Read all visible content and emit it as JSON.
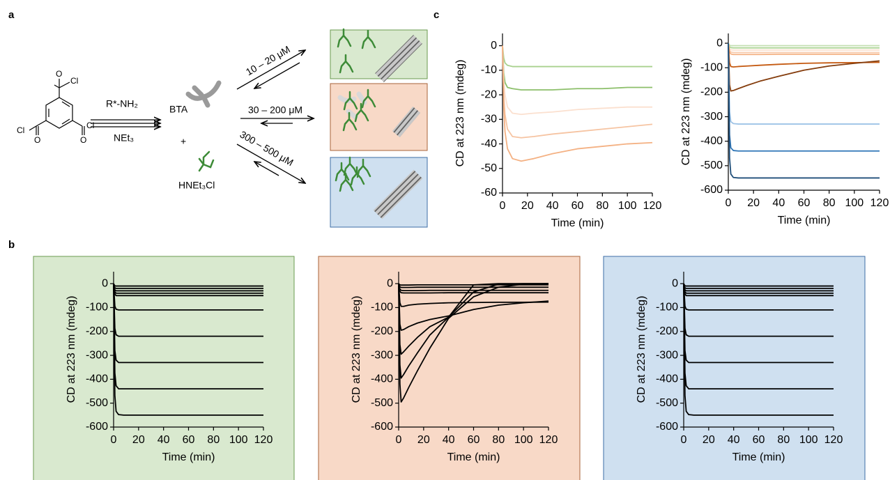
{
  "scheme": {
    "panel_labels": [
      "a",
      "b",
      "c"
    ],
    "atoms": [
      "O",
      "Cl",
      "Cl",
      "O",
      "O",
      "Cl"
    ],
    "reagent": "R*-NH₂",
    "base": "NEt₃",
    "product": "BTA",
    "plus": "+",
    "salt": "HNEt₃Cl",
    "conditions": [
      "10 – 20 μM",
      "30 – 200 μM",
      "300 – 500 μM"
    ]
  },
  "chart_data": [
    {
      "type": "line",
      "ylabel": "CD at 223 nm (mdeg)",
      "xlabel": "Time (min)",
      "x": [
        0,
        1,
        2,
        4,
        8,
        15,
        25,
        40,
        60,
        80,
        100,
        120
      ],
      "xlim": [
        0,
        120
      ],
      "ylim": [
        -60,
        5
      ],
      "xticks": [
        0,
        20,
        40,
        60,
        80,
        100,
        120
      ],
      "yticks": [
        0,
        -10,
        -20,
        -30,
        -40,
        -50,
        -60
      ],
      "series": [
        {
          "color": "#a9d18e",
          "values": [
            0,
            -5,
            -7,
            -8,
            -8.5,
            -8.5,
            -8.5,
            -8.5,
            -8.5,
            -8.5,
            -8.5,
            -8.5
          ]
        },
        {
          "color": "#8cbf6a",
          "values": [
            0,
            -11,
            -15,
            -17,
            -17.5,
            -18,
            -18,
            -18,
            -17.5,
            -17.5,
            -17,
            -17
          ]
        },
        {
          "color": "#fbe0cf",
          "values": [
            0,
            -14,
            -20,
            -25,
            -27.5,
            -28,
            -27.5,
            -27,
            -26,
            -25.5,
            -25,
            -25
          ]
        },
        {
          "color": "#f6c4a2",
          "values": [
            0,
            -20,
            -28,
            -34,
            -37,
            -37.5,
            -37,
            -36,
            -35,
            -34,
            -33,
            -32
          ]
        },
        {
          "color": "#f4b183",
          "values": [
            0,
            -25,
            -35,
            -42,
            -46,
            -47,
            -46,
            -44,
            -42,
            -41,
            -40,
            -39.5
          ]
        }
      ]
    },
    {
      "type": "line",
      "ylabel": "CD at 223 nm (mdeg)",
      "xlabel": "Time (min)",
      "x": [
        0,
        1,
        2,
        4,
        8,
        15,
        25,
        40,
        60,
        80,
        100,
        120
      ],
      "xlim": [
        0,
        120
      ],
      "ylim": [
        -600,
        40
      ],
      "xticks": [
        0,
        20,
        40,
        60,
        80,
        100,
        120
      ],
      "yticks": [
        0,
        -100,
        -200,
        -300,
        -400,
        -500,
        -600
      ],
      "series": [
        {
          "color": "#c5e0b4",
          "values": [
            0,
            -8,
            -10,
            -10,
            -10,
            -10,
            -10,
            -10,
            -10,
            -10,
            -10,
            -10
          ]
        },
        {
          "color": "#a9d18e",
          "values": [
            0,
            -15,
            -18,
            -19,
            -19,
            -19,
            -19,
            -19,
            -19,
            -19,
            -19,
            -19
          ]
        },
        {
          "color": "#fbe0cf",
          "values": [
            0,
            -22,
            -27,
            -28,
            -28,
            -28,
            -28,
            -28,
            -28,
            -28,
            -28,
            -28
          ]
        },
        {
          "color": "#f8cbad",
          "values": [
            0,
            -30,
            -36,
            -38,
            -38,
            -38,
            -38,
            -38,
            -38,
            -38,
            -38,
            -38
          ]
        },
        {
          "color": "#f4b183",
          "values": [
            0,
            -36,
            -44,
            -46,
            -46,
            -46,
            -46,
            -45,
            -45,
            -45,
            -45,
            -45
          ]
        },
        {
          "color": "#c55a11",
          "values": [
            0,
            -80,
            -95,
            -97,
            -95,
            -93,
            -90,
            -86,
            -82,
            -80,
            -79,
            -78
          ]
        },
        {
          "color": "#843c0c",
          "values": [
            0,
            -170,
            -195,
            -193,
            -185,
            -172,
            -155,
            -135,
            -110,
            -93,
            -82,
            -72
          ]
        },
        {
          "color": "#9dc3e6",
          "values": [
            0,
            -280,
            -320,
            -328,
            -330,
            -330,
            -330,
            -330,
            -330,
            -330,
            -330,
            -330
          ]
        },
        {
          "color": "#2e75b6",
          "values": [
            0,
            -374,
            -427,
            -438,
            -440,
            -440,
            -440,
            -440,
            -440,
            -440,
            -440,
            -440
          ]
        },
        {
          "color": "#1f4e79",
          "values": [
            0,
            -468,
            -534,
            -548,
            -550,
            -550,
            -550,
            -550,
            -550,
            -550,
            -550,
            -550
          ]
        }
      ]
    },
    {
      "type": "line",
      "ylabel": "CD at 223 nm (mdeg)",
      "xlabel": "Time (min)",
      "x": [
        0,
        1,
        2,
        4,
        8,
        15,
        25,
        40,
        60,
        80,
        100,
        120
      ],
      "xlim": [
        0,
        120
      ],
      "ylim": [
        -600,
        50
      ],
      "xticks": [
        0,
        20,
        40,
        60,
        80,
        100,
        120
      ],
      "yticks": [
        0,
        -100,
        -200,
        -300,
        -400,
        -500,
        -600
      ],
      "series": [
        {
          "color": "#000000",
          "values": [
            0,
            -9,
            -10,
            -10,
            -10,
            -10,
            -10,
            -10,
            -10,
            -10,
            -10,
            -10
          ]
        },
        {
          "color": "#000000",
          "values": [
            0,
            -17,
            -20,
            -20,
            -20,
            -20,
            -20,
            -20,
            -20,
            -20,
            -20,
            -20
          ]
        },
        {
          "color": "#000000",
          "values": [
            0,
            -26,
            -30,
            -30,
            -30,
            -30,
            -30,
            -30,
            -30,
            -30,
            -30,
            -30
          ]
        },
        {
          "color": "#000000",
          "values": [
            0,
            -34,
            -40,
            -40,
            -40,
            -40,
            -40,
            -40,
            -40,
            -40,
            -40,
            -40
          ]
        },
        {
          "color": "#000000",
          "values": [
            0,
            -43,
            -50,
            -50,
            -50,
            -50,
            -50,
            -50,
            -50,
            -50,
            -50,
            -50
          ]
        },
        {
          "color": "#000000",
          "values": [
            0,
            -94,
            -107,
            -110,
            -110,
            -110,
            -110,
            -110,
            -110,
            -110,
            -110,
            -110
          ]
        },
        {
          "color": "#000000",
          "values": [
            0,
            -187,
            -214,
            -220,
            -220,
            -220,
            -220,
            -220,
            -220,
            -220,
            -220,
            -220
          ]
        },
        {
          "color": "#000000",
          "values": [
            0,
            -280,
            -320,
            -330,
            -330,
            -330,
            -330,
            -330,
            -330,
            -330,
            -330,
            -330
          ]
        },
        {
          "color": "#000000",
          "values": [
            0,
            -374,
            -427,
            -440,
            -440,
            -440,
            -440,
            -440,
            -440,
            -440,
            -440,
            -440
          ]
        },
        {
          "color": "#000000",
          "values": [
            0,
            -468,
            -534,
            -548,
            -550,
            -550,
            -550,
            -550,
            -550,
            -550,
            -550,
            -550
          ]
        }
      ]
    },
    {
      "type": "line",
      "ylabel": "CD at 223 nm (mdeg)",
      "xlabel": "Time (min)",
      "x": [
        0,
        1,
        2,
        4,
        8,
        15,
        25,
        40,
        60,
        80,
        100,
        120
      ],
      "xlim": [
        0,
        120
      ],
      "ylim": [
        -600,
        50
      ],
      "xticks": [
        0,
        20,
        40,
        60,
        80,
        100,
        120
      ],
      "yticks": [
        0,
        -100,
        -200,
        -300,
        -400,
        -500,
        -600
      ],
      "series": [
        {
          "color": "#000000",
          "values": [
            0,
            -5,
            -6,
            -6,
            -6,
            -5,
            -5,
            -5,
            -5,
            -5,
            -5,
            -5
          ]
        },
        {
          "color": "#000000",
          "values": [
            0,
            -13,
            -16,
            -16,
            -16,
            -15,
            -15,
            -15,
            -15,
            -15,
            -15,
            -15
          ]
        },
        {
          "color": "#000000",
          "values": [
            0,
            -23,
            -28,
            -29,
            -29,
            -29,
            -28,
            -28,
            -28,
            -28,
            -28,
            -28
          ]
        },
        {
          "color": "#000000",
          "values": [
            0,
            -32,
            -38,
            -39,
            -39,
            -39,
            -39,
            -38,
            -38,
            -38,
            -38,
            -38
          ]
        },
        {
          "color": "#000000",
          "values": [
            0,
            -80,
            -95,
            -95,
            -90,
            -86,
            -83,
            -80,
            -79,
            -78,
            -78,
            -77
          ]
        },
        {
          "color": "#000000",
          "values": [
            0,
            -170,
            -195,
            -192,
            -180,
            -165,
            -150,
            -135,
            -108,
            -90,
            -80,
            -73
          ]
        },
        {
          "color": "#000000",
          "values": [
            0,
            -255,
            -295,
            -285,
            -262,
            -225,
            -180,
            -140,
            -5,
            0,
            0,
            0
          ]
        },
        {
          "color": "#000000",
          "values": [
            0,
            -340,
            -395,
            -380,
            -345,
            -290,
            -215,
            -140,
            -35,
            -2,
            0,
            0
          ]
        },
        {
          "color": "#000000",
          "values": [
            0,
            -420,
            -495,
            -478,
            -435,
            -365,
            -270,
            -145,
            -55,
            -15,
            -2,
            0
          ]
        }
      ]
    },
    {
      "type": "line",
      "ylabel": "CD at 223 nm (mdeg)",
      "xlabel": "Time (min)",
      "x": [
        0,
        1,
        2,
        4,
        8,
        15,
        25,
        40,
        60,
        80,
        100,
        120
      ],
      "xlim": [
        0,
        120
      ],
      "ylim": [
        -600,
        50
      ],
      "xticks": [
        0,
        20,
        40,
        60,
        80,
        100,
        120
      ],
      "yticks": [
        0,
        -100,
        -200,
        -300,
        -400,
        -500,
        -600
      ],
      "series": [
        {
          "color": "#000000",
          "values": [
            0,
            -9,
            -10,
            -10,
            -10,
            -10,
            -10,
            -10,
            -10,
            -10,
            -10,
            -10
          ]
        },
        {
          "color": "#000000",
          "values": [
            0,
            -17,
            -20,
            -20,
            -20,
            -20,
            -20,
            -20,
            -20,
            -20,
            -20,
            -20
          ]
        },
        {
          "color": "#000000",
          "values": [
            0,
            -26,
            -30,
            -30,
            -30,
            -30,
            -30,
            -30,
            -30,
            -30,
            -30,
            -30
          ]
        },
        {
          "color": "#000000",
          "values": [
            0,
            -34,
            -40,
            -40,
            -40,
            -40,
            -40,
            -40,
            -40,
            -40,
            -40,
            -40
          ]
        },
        {
          "color": "#000000",
          "values": [
            0,
            -43,
            -50,
            -50,
            -50,
            -50,
            -50,
            -50,
            -50,
            -50,
            -50,
            -50
          ]
        },
        {
          "color": "#000000",
          "values": [
            0,
            -94,
            -107,
            -110,
            -110,
            -110,
            -110,
            -110,
            -110,
            -110,
            -110,
            -110
          ]
        },
        {
          "color": "#000000",
          "values": [
            0,
            -187,
            -214,
            -220,
            -220,
            -220,
            -220,
            -220,
            -220,
            -220,
            -220,
            -220
          ]
        },
        {
          "color": "#000000",
          "values": [
            0,
            -280,
            -320,
            -330,
            -330,
            -330,
            -330,
            -330,
            -330,
            -330,
            -330,
            -330
          ]
        },
        {
          "color": "#000000",
          "values": [
            0,
            -374,
            -427,
            -440,
            -440,
            -440,
            -440,
            -440,
            -440,
            -440,
            -440,
            -440
          ]
        },
        {
          "color": "#000000",
          "values": [
            0,
            -468,
            -534,
            -548,
            -550,
            -550,
            -550,
            -550,
            -550,
            -550,
            -550,
            -550
          ]
        }
      ]
    }
  ]
}
